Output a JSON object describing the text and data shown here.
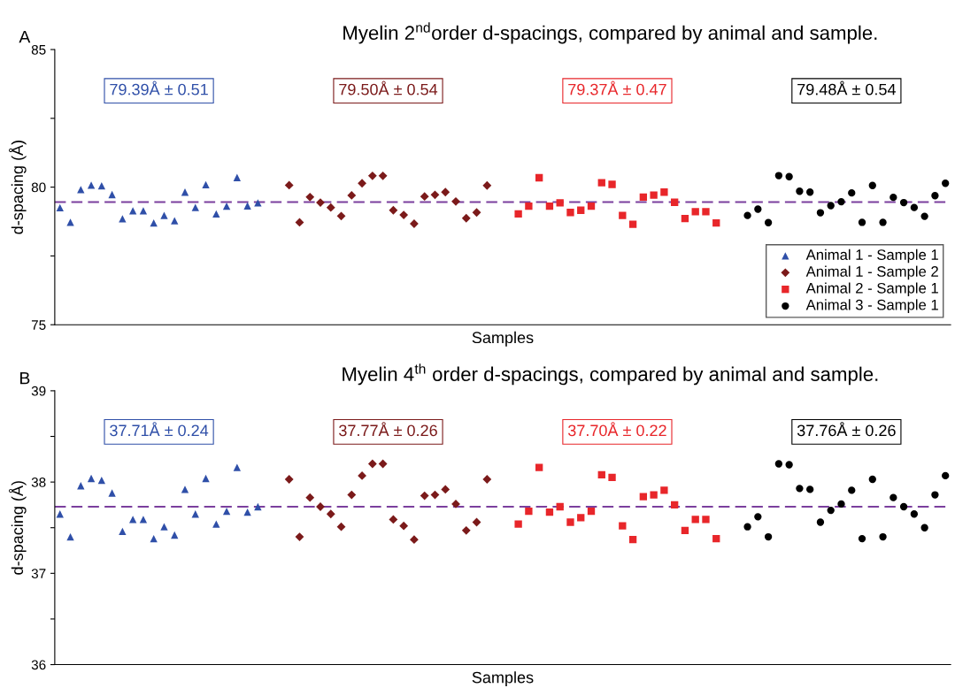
{
  "chart_data": [
    {
      "type": "scatter",
      "title": "Myelin 2$^{nd}$order d-spacings, compared by animal and sample.",
      "xlabel": "Samples",
      "ylabel": "d-spacing (Å)",
      "categories": [
        null,
        null,
        null,
        null,
        null,
        null,
        null,
        null,
        null,
        null,
        null,
        null,
        null,
        null,
        null,
        null,
        null,
        null,
        null,
        null,
        null,
        null,
        null,
        null,
        null,
        null,
        null,
        null,
        null,
        null,
        null,
        null,
        null,
        null,
        null,
        null,
        null,
        null,
        null,
        null,
        null,
        null,
        null,
        null,
        null,
        null,
        null,
        null,
        null,
        null,
        null,
        null,
        null,
        null,
        null,
        null,
        null,
        null,
        null,
        null,
        null,
        null,
        null,
        null,
        null,
        null,
        null,
        null,
        null,
        null,
        null,
        null,
        null,
        null,
        null,
        null,
        null,
        null,
        null,
        null,
        null,
        null,
        null,
        null,
        null,
        null
      ],
      "series": [
        {
          "name": "Animal 1 - Sample 1",
          "color": "#2f4fa8",
          "marker": "triangle",
          "values": [
            79.25,
            78.72,
            79.91,
            80.07,
            80.05,
            79.73,
            78.85,
            79.14,
            79.14,
            78.7,
            78.97,
            78.78,
            79.82,
            79.26,
            80.09,
            79.03,
            79.31,
            80.35,
            79.32,
            79.43,
            null,
            null,
            null,
            null,
            null,
            null,
            null,
            null,
            null,
            null,
            null,
            null,
            null,
            null,
            null,
            null,
            null,
            null,
            null,
            null,
            null,
            null,
            null,
            null,
            null,
            null,
            null,
            null,
            null,
            null,
            null,
            null,
            null,
            null,
            null,
            null,
            null,
            null,
            null,
            null,
            null,
            null,
            null,
            null,
            null,
            null,
            null,
            null,
            null,
            null,
            null,
            null,
            null,
            null,
            null,
            null,
            null,
            null,
            null,
            null,
            null,
            null,
            null,
            null,
            null,
            null
          ]
        },
        {
          "name": "Animal 1 - Sample 2",
          "color": "#7b1a1a",
          "marker": "diamond",
          "values": [
            null,
            null,
            null,
            null,
            null,
            null,
            null,
            null,
            null,
            null,
            null,
            null,
            null,
            null,
            null,
            null,
            null,
            null,
            null,
            null,
            null,
            null,
            80.07,
            78.72,
            79.64,
            79.44,
            79.26,
            78.95,
            79.7,
            80.14,
            80.41,
            80.41,
            79.16,
            78.99,
            78.67,
            79.66,
            79.72,
            79.82,
            79.48,
            78.87,
            79.08,
            80.06,
            null,
            null,
            null,
            null,
            null,
            null,
            null,
            null,
            null,
            null,
            null,
            null,
            null,
            null,
            null,
            null,
            null,
            null,
            null,
            null,
            null,
            null,
            null,
            null,
            null,
            null,
            null,
            null,
            null,
            null,
            null,
            null,
            null,
            null,
            null,
            null,
            null,
            null,
            null,
            null,
            null,
            null,
            null,
            null
          ]
        },
        {
          "name": "Animal 2 - Sample 1",
          "color": "#e8262a",
          "marker": "square",
          "values": [
            null,
            null,
            null,
            null,
            null,
            null,
            null,
            null,
            null,
            null,
            null,
            null,
            null,
            null,
            null,
            null,
            null,
            null,
            null,
            null,
            null,
            null,
            null,
            null,
            null,
            null,
            null,
            null,
            null,
            null,
            null,
            null,
            null,
            null,
            null,
            null,
            null,
            null,
            null,
            null,
            null,
            null,
            null,
            null,
            79.03,
            79.31,
            80.34,
            79.31,
            79.43,
            79.08,
            79.16,
            79.31,
            80.16,
            80.1,
            78.97,
            78.65,
            79.64,
            79.71,
            79.82,
            79.45,
            78.86,
            79.11,
            79.11,
            78.7,
            null,
            null,
            null,
            null,
            null,
            null,
            null,
            null,
            null,
            null,
            null,
            null,
            null,
            null,
            null,
            null,
            null,
            null,
            null,
            null,
            null,
            null
          ]
        },
        {
          "name": "Animal 3 - Sample 1",
          "color": "#000000",
          "marker": "circle",
          "values": [
            null,
            null,
            null,
            null,
            null,
            null,
            null,
            null,
            null,
            null,
            null,
            null,
            null,
            null,
            null,
            null,
            null,
            null,
            null,
            null,
            null,
            null,
            null,
            null,
            null,
            null,
            null,
            null,
            null,
            null,
            null,
            null,
            null,
            null,
            null,
            null,
            null,
            null,
            null,
            null,
            null,
            null,
            null,
            null,
            null,
            null,
            null,
            null,
            null,
            null,
            null,
            null,
            null,
            null,
            null,
            null,
            null,
            null,
            null,
            null,
            null,
            null,
            null,
            null,
            null,
            null,
            78.97,
            79.2,
            78.71,
            80.42,
            80.38,
            79.85,
            79.82,
            79.07,
            79.33,
            79.47,
            79.79,
            78.72,
            80.06,
            78.72,
            79.63,
            79.44,
            79.26,
            78.94,
            79.69,
            80.14
          ]
        }
      ],
      "ylim": [
        75,
        85
      ],
      "yticks": [
        75,
        {
          "value": 77.5,
          "label": null
        },
        80,
        {
          "value": 82.5,
          "label": null
        },
        85
      ],
      "ref_lines": [
        {
          "axis": "y",
          "value": 79.46,
          "color": "#7b3f9e",
          "line_style": "dashed"
        }
      ],
      "annotations": [
        "A",
        "79.39Å ± 0.51",
        "79.50Å ± 0.54",
        "79.37Å ± 0.47",
        "79.48Å ± 0.54"
      ],
      "legend": "bottom right",
      "grid": false
    },
    {
      "type": "scatter",
      "title": "Myelin 4$^{th}$ order d-spacings, compared by animal and sample.",
      "xlabel": "Samples",
      "ylabel": "d-spacing (Å)",
      "categories": [
        null,
        null,
        null,
        null,
        null,
        null,
        null,
        null,
        null,
        null,
        null,
        null,
        null,
        null,
        null,
        null,
        null,
        null,
        null,
        null,
        null,
        null,
        null,
        null,
        null,
        null,
        null,
        null,
        null,
        null,
        null,
        null,
        null,
        null,
        null,
        null,
        null,
        null,
        null,
        null,
        null,
        null,
        null,
        null,
        null,
        null,
        null,
        null,
        null,
        null,
        null,
        null,
        null,
        null,
        null,
        null,
        null,
        null,
        null,
        null,
        null,
        null,
        null,
        null,
        null,
        null,
        null,
        null,
        null,
        null,
        null,
        null,
        null,
        null,
        null,
        null,
        null,
        null,
        null,
        null,
        null,
        null,
        null,
        null,
        null,
        null
      ],
      "series": [
        {
          "color": "#2f4fa8",
          "marker": "triangle",
          "values": [
            37.65,
            37.4,
            37.96,
            38.04,
            38.02,
            37.88,
            37.46,
            37.59,
            37.59,
            37.38,
            37.51,
            37.42,
            37.92,
            37.65,
            38.04,
            37.54,
            37.68,
            38.16,
            37.67,
            37.73,
            null,
            null,
            null,
            null,
            null,
            null,
            null,
            null,
            null,
            null,
            null,
            null,
            null,
            null,
            null,
            null,
            null,
            null,
            null,
            null,
            null,
            null,
            null,
            null,
            null,
            null,
            null,
            null,
            null,
            null,
            null,
            null,
            null,
            null,
            null,
            null,
            null,
            null,
            null,
            null,
            null,
            null,
            null,
            null,
            null,
            null,
            null,
            null,
            null,
            null,
            null,
            null,
            null,
            null,
            null,
            null,
            null,
            null,
            null,
            null,
            null,
            null,
            null,
            null,
            null,
            null
          ]
        },
        {
          "color": "#7b1a1a",
          "marker": "diamond",
          "values": [
            null,
            null,
            null,
            null,
            null,
            null,
            null,
            null,
            null,
            null,
            null,
            null,
            null,
            null,
            null,
            null,
            null,
            null,
            null,
            null,
            null,
            null,
            38.03,
            37.4,
            37.83,
            37.73,
            37.65,
            37.51,
            37.86,
            38.07,
            38.2,
            38.2,
            37.59,
            37.52,
            37.37,
            37.85,
            37.86,
            37.92,
            37.76,
            37.47,
            37.56,
            38.03,
            null,
            null,
            null,
            null,
            null,
            null,
            null,
            null,
            null,
            null,
            null,
            null,
            null,
            null,
            null,
            null,
            null,
            null,
            null,
            null,
            null,
            null,
            null,
            null,
            null,
            null,
            null,
            null,
            null,
            null,
            null,
            null,
            null,
            null,
            null,
            null,
            null,
            null,
            null,
            null,
            null,
            null,
            null,
            null
          ]
        },
        {
          "color": "#e8262a",
          "marker": "square",
          "values": [
            null,
            null,
            null,
            null,
            null,
            null,
            null,
            null,
            null,
            null,
            null,
            null,
            null,
            null,
            null,
            null,
            null,
            null,
            null,
            null,
            null,
            null,
            null,
            null,
            null,
            null,
            null,
            null,
            null,
            null,
            null,
            null,
            null,
            null,
            null,
            null,
            null,
            null,
            null,
            null,
            null,
            null,
            null,
            null,
            37.54,
            37.68,
            38.16,
            37.67,
            37.73,
            37.56,
            37.61,
            37.68,
            38.08,
            38.05,
            37.52,
            37.37,
            37.84,
            37.86,
            37.91,
            37.75,
            37.47,
            37.59,
            37.59,
            37.38,
            null,
            null,
            null,
            null,
            null,
            null,
            null,
            null,
            null,
            null,
            null,
            null,
            null,
            null,
            null,
            null,
            null,
            null,
            null,
            null,
            null,
            null
          ]
        },
        {
          "color": "#000000",
          "marker": "circle",
          "values": [
            null,
            null,
            null,
            null,
            null,
            null,
            null,
            null,
            null,
            null,
            null,
            null,
            null,
            null,
            null,
            null,
            null,
            null,
            null,
            null,
            null,
            null,
            null,
            null,
            null,
            null,
            null,
            null,
            null,
            null,
            null,
            null,
            null,
            null,
            null,
            null,
            null,
            null,
            null,
            null,
            null,
            null,
            null,
            null,
            null,
            null,
            null,
            null,
            null,
            null,
            null,
            null,
            null,
            null,
            null,
            null,
            null,
            null,
            null,
            null,
            null,
            null,
            null,
            null,
            null,
            null,
            37.51,
            37.62,
            37.4,
            38.2,
            38.19,
            37.93,
            37.92,
            37.56,
            37.69,
            37.76,
            37.91,
            37.38,
            38.03,
            37.4,
            37.83,
            37.73,
            37.65,
            37.5,
            37.86,
            38.07
          ]
        }
      ],
      "ylim": [
        36,
        39
      ],
      "yticks": [
        36,
        {
          "value": 36.5,
          "label": null
        },
        37,
        {
          "value": 37.5,
          "label": null
        },
        38,
        {
          "value": 38.5,
          "label": null
        },
        39
      ],
      "ref_lines": [
        {
          "axis": "y",
          "value": 37.73,
          "color": "#7b3f9e",
          "line_style": "dashed"
        }
      ],
      "annotations": [
        "B",
        "37.71Å ± 0.24",
        "37.77Å ± 0.26",
        "37.70Å ± 0.22",
        "37.76Å ± 0.26"
      ],
      "grid": false
    }
  ]
}
